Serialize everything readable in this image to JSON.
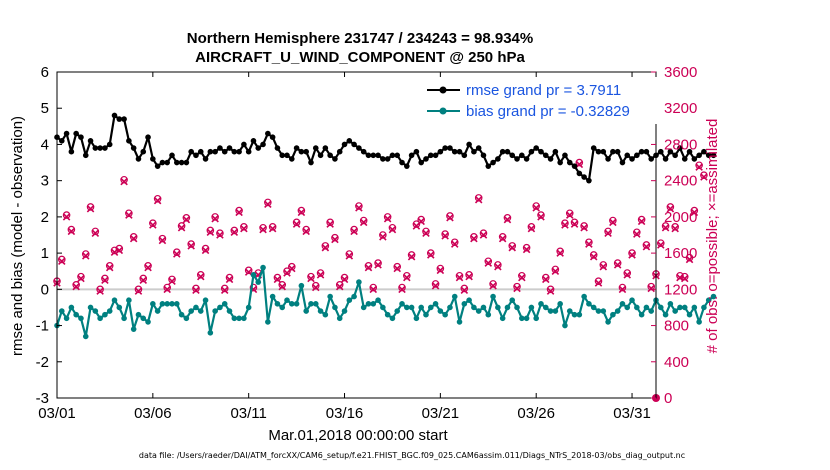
{
  "chart_data": {
    "type": "line",
    "title": "Northern Hemisphere 231747 / 234243 = 98.934%",
    "subtitle": "AIRCRAFT_U_WIND_COMPONENT @ 250 hPa",
    "xlabel": "Mar.01,2018 00:00:00 start",
    "ylabel": "rmse and bias (model - observation)",
    "y2label": "# of obs: o=possible; ×=assimilated",
    "footnote": "data file: /Users/raeder/DAI/ATM_forcXX/CAM6_setup/f.e21.FHIST_BGC.f09_025.CAM6assim.011/Diags_NTrS_2018-03/obs_diag_output.nc",
    "x_ticks": [
      {
        "day": 0,
        "label": "03/01"
      },
      {
        "day": 5,
        "label": "03/06"
      },
      {
        "day": 10,
        "label": "03/11"
      },
      {
        "day": 15,
        "label": "03/16"
      },
      {
        "day": 20,
        "label": "03/21"
      },
      {
        "day": 25,
        "label": "03/26"
      },
      {
        "day": 30,
        "label": "03/31"
      }
    ],
    "xlim": [
      0,
      31.25
    ],
    "ylim": [
      -3,
      6
    ],
    "y_ticks": [
      "-3",
      "-2",
      "-1",
      "0",
      "1",
      "2",
      "3",
      "4",
      "5",
      "6"
    ],
    "y2lim": [
      0,
      3600
    ],
    "y2_ticks": [
      "0",
      "400",
      "800",
      "1200",
      "1600",
      "2000",
      "2400",
      "2800",
      "3200",
      "3600"
    ],
    "legend_location": "top-right",
    "series": [
      {
        "name": "rmse grand pr = 3.7911",
        "color": "#000000",
        "x_start": 0,
        "x_step": 0.25,
        "values": [
          4.2,
          4.1,
          4.3,
          3.8,
          4.3,
          4.2,
          3.7,
          4.1,
          3.9,
          3.9,
          3.9,
          4.0,
          4.8,
          4.7,
          4.7,
          4.1,
          3.9,
          3.6,
          3.8,
          4.2,
          3.6,
          3.4,
          3.5,
          3.5,
          3.7,
          3.5,
          3.5,
          3.5,
          3.8,
          3.7,
          3.8,
          3.6,
          3.8,
          3.8,
          3.9,
          3.8,
          3.9,
          3.8,
          3.8,
          4.0,
          3.8,
          4.1,
          3.9,
          4.0,
          4.3,
          4.2,
          3.9,
          3.7,
          3.7,
          3.6,
          3.9,
          3.8,
          3.8,
          3.5,
          3.9,
          3.7,
          3.9,
          3.7,
          3.6,
          3.8,
          4.0,
          4.1,
          4.0,
          3.9,
          3.8,
          3.7,
          3.7,
          3.7,
          3.6,
          3.6,
          3.7,
          3.7,
          3.5,
          3.4,
          3.7,
          3.8,
          3.5,
          3.6,
          3.7,
          3.7,
          3.8,
          3.9,
          3.9,
          3.8,
          3.8,
          3.7,
          4.0,
          3.8,
          3.9,
          3.7,
          3.4,
          3.5,
          3.6,
          3.8,
          3.8,
          3.7,
          3.6,
          3.7,
          3.6,
          3.8,
          3.9,
          3.8,
          3.7,
          3.6,
          3.8,
          3.5,
          3.7,
          3.5,
          3.4,
          3.2,
          3.1,
          3.0,
          3.9,
          3.8,
          3.8,
          3.6,
          3.8,
          3.8,
          3.5,
          3.7,
          3.6,
          3.7,
          3.8,
          3.8,
          3.6,
          3.7,
          3.8,
          3.6,
          3.8,
          3.7,
          3.9,
          3.6,
          3.8,
          3.6,
          3.7,
          3.8,
          3.7,
          3.7
        ]
      },
      {
        "name": "bias grand pr = -0.32829",
        "color": "#008080",
        "x_start": 0,
        "x_step": 0.25,
        "values": [
          -1.0,
          -0.6,
          -0.8,
          -0.5,
          -0.7,
          -0.8,
          -1.3,
          -0.5,
          -0.6,
          -0.8,
          -0.7,
          -0.6,
          -0.3,
          -0.5,
          -0.8,
          -0.3,
          -1.1,
          -0.7,
          -0.8,
          -0.9,
          -0.4,
          -0.6,
          -0.4,
          -0.4,
          -0.4,
          -0.4,
          -0.7,
          -0.8,
          -0.6,
          -0.5,
          -0.6,
          -0.3,
          -1.2,
          -0.6,
          -0.5,
          -0.4,
          -0.6,
          -0.8,
          -0.8,
          -0.8,
          -0.5,
          0.4,
          0.2,
          0.6,
          -0.9,
          -0.2,
          -0.4,
          -0.5,
          -0.3,
          -0.4,
          -0.4,
          0.1,
          -0.6,
          -0.4,
          -0.4,
          -0.6,
          -0.7,
          -0.2,
          -0.5,
          -0.8,
          -0.6,
          -0.3,
          -0.2,
          0.2,
          -0.5,
          -0.4,
          -0.4,
          -0.3,
          -0.5,
          -0.7,
          -0.8,
          -0.6,
          -0.4,
          -0.5,
          -0.5,
          -0.8,
          -0.5,
          -0.7,
          -0.5,
          -0.4,
          -0.6,
          -0.7,
          -0.5,
          -0.2,
          -0.9,
          -0.4,
          -0.3,
          -0.5,
          -0.6,
          -0.5,
          -0.7,
          -0.2,
          -0.5,
          -0.8,
          -0.5,
          -0.3,
          -0.5,
          -0.8,
          -0.8,
          -0.5,
          -0.8,
          -0.4,
          -0.5,
          -0.6,
          -0.6,
          -0.4,
          -1.0,
          -0.6,
          -0.7,
          -0.7,
          -0.2,
          -0.4,
          -0.5,
          -0.6,
          -0.6,
          -0.9,
          -0.7,
          -0.6,
          -0.4,
          -0.5,
          -0.3,
          -0.5,
          -0.7,
          -0.5,
          -0.6,
          -0.3,
          -0.5,
          -0.7,
          -0.4,
          -0.6,
          -0.5,
          -0.5,
          -0.7,
          -0.5,
          -0.9,
          -0.5,
          -0.3,
          -0.2
        ]
      }
    ],
    "obs_possible": {
      "name": "possible",
      "color": "#cc0055",
      "x_start": 0,
      "x_step": 0.25,
      "values": [
        1290,
        1530,
        2020,
        1860,
        1250,
        1340,
        1590,
        2110,
        1840,
        1200,
        1320,
        1460,
        1630,
        1650,
        2410,
        2040,
        1780,
        1200,
        1320,
        1460,
        1930,
        2200,
        1760,
        1220,
        1310,
        1610,
        1900,
        1990,
        1700,
        1210,
        1360,
        1650,
        1850,
        2000,
        1820,
        1210,
        1330,
        1850,
        2070,
        1890,
        1410,
        1220,
        1380,
        1880,
        2160,
        1890,
        1330,
        1250,
        1400,
        1450,
        1940,
        2070,
        1860,
        1340,
        1240,
        1380,
        1680,
        1940,
        1770,
        1250,
        1330,
        1590,
        1860,
        2120,
        1960,
        1460,
        1220,
        1490,
        1800,
        2000,
        1880,
        1450,
        1220,
        1350,
        1580,
        1920,
        1970,
        1840,
        1600,
        1260,
        1430,
        1810,
        2010,
        1720,
        1350,
        1210,
        1360,
        1780,
        2210,
        1820,
        1510,
        1260,
        1470,
        1780,
        1990,
        1680,
        1230,
        1350,
        1660,
        1890,
        2120,
        2020,
        1330,
        1200,
        1420,
        1620,
        1930,
        2040,
        1940,
        2600,
        1900,
        1720,
        1580,
        1290,
        1470,
        1840,
        1960,
        1490,
        1220,
        1380,
        1600,
        1830,
        1970,
        1690,
        1230,
        1370,
        1710,
        1900,
        2110,
        1890,
        1350,
        1340,
        1550,
        2070,
        2570,
        2460
      ]
    },
    "obs_assimilated": {
      "name": "assimilated",
      "color": "#cc0055",
      "x_start": 0,
      "x_step": 0.25,
      "values": [
        1270,
        1510,
        2000,
        1840,
        1230,
        1320,
        1570,
        2090,
        1820,
        1180,
        1300,
        1440,
        1610,
        1630,
        2390,
        2020,
        1760,
        1180,
        1300,
        1440,
        1910,
        2180,
        1740,
        1200,
        1290,
        1590,
        1880,
        1970,
        1680,
        1190,
        1340,
        1630,
        1830,
        1980,
        1800,
        1190,
        1310,
        1830,
        2050,
        1870,
        1390,
        1200,
        1360,
        1860,
        2140,
        1870,
        1310,
        1230,
        1380,
        1430,
        1920,
        2050,
        1840,
        1320,
        1220,
        1360,
        1660,
        1920,
        1750,
        1230,
        1310,
        1570,
        1840,
        2100,
        1940,
        1440,
        1200,
        1470,
        1780,
        1980,
        1860,
        1430,
        1200,
        1330,
        1560,
        1900,
        1950,
        1820,
        1580,
        1240,
        1410,
        1790,
        1990,
        1700,
        1330,
        1190,
        1340,
        1760,
        2190,
        1800,
        1490,
        1240,
        1450,
        1760,
        1970,
        1660,
        1210,
        1330,
        1640,
        1870,
        2100,
        2000,
        1310,
        1180,
        1400,
        1600,
        1910,
        2020,
        1920,
        2580,
        1880,
        1700,
        1560,
        1270,
        1450,
        1820,
        1940,
        1470,
        1200,
        1360,
        1580,
        1810,
        1950,
        1670,
        1210,
        1350,
        1690,
        1880,
        2090,
        1870,
        1330,
        1320,
        1530,
        2050,
        2550,
        2440
      ]
    }
  }
}
